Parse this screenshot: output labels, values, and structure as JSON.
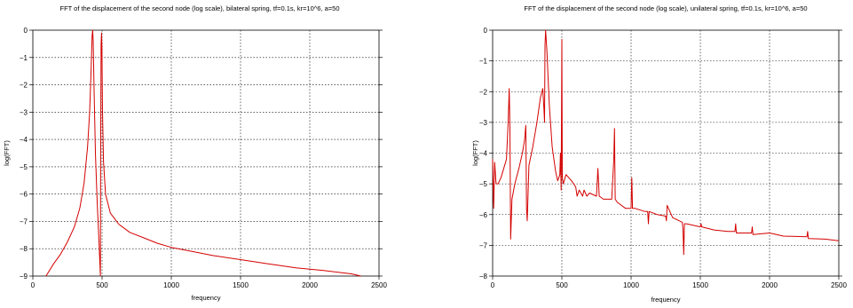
{
  "chart_data": [
    {
      "type": "line",
      "title": "FFT of the  displacement of the second  node (log scale), bilateral spring, tf=0.1s, kr=10^6, a=50",
      "xlabel": "frequency",
      "ylabel": "log(FFT)",
      "xlim": [
        0,
        2500
      ],
      "ylim": [
        -9,
        0
      ],
      "xticks": [
        0,
        500,
        1000,
        1500,
        2000,
        2500
      ],
      "yticks": [
        -9,
        -8,
        -7,
        -6,
        -5,
        -4,
        -3,
        -2,
        -1,
        0
      ],
      "grid": true,
      "line_color": "#d40000",
      "series": [
        {
          "x": [
            95,
            150,
            200,
            250,
            300,
            340,
            370,
            395,
            410,
            420,
            428,
            432,
            436,
            442,
            452,
            465,
            478,
            488,
            490,
            493,
            496,
            499,
            503,
            510,
            525,
            560,
            620,
            700,
            800,
            900,
            1000,
            1150,
            1300,
            1500,
            1700,
            1900,
            2100,
            2300,
            2370
          ],
          "y": [
            -9.0,
            -8.55,
            -8.2,
            -7.75,
            -7.2,
            -6.5,
            -5.6,
            -4.3,
            -3.0,
            -1.6,
            -0.2,
            0.0,
            -0.4,
            -2.2,
            -4.5,
            -6.3,
            -7.8,
            -9.0,
            -4.5,
            -0.5,
            -0.1,
            -0.6,
            -3.0,
            -4.8,
            -6.0,
            -6.7,
            -7.1,
            -7.4,
            -7.6,
            -7.8,
            -7.95,
            -8.1,
            -8.25,
            -8.4,
            -8.55,
            -8.7,
            -8.8,
            -8.92,
            -9.0
          ]
        }
      ]
    },
    {
      "type": "line",
      "title": "FFT of the  displacement of the second  node (log scale), unilateral spring, tf=0.1s, kr=10^6, a=50",
      "xlabel": "frequency",
      "ylabel": "log(FFT)",
      "xlim": [
        0,
        2500
      ],
      "ylim": [
        -8,
        0
      ],
      "xticks": [
        0,
        500,
        1000,
        1500,
        2000,
        2500
      ],
      "yticks": [
        -8,
        -7,
        -6,
        -5,
        -4,
        -3,
        -2,
        -1,
        0
      ],
      "grid": true,
      "line_color": "#d40000",
      "series": [
        {
          "x": [
            0,
            8,
            15,
            25,
            40,
            60,
            80,
            100,
            112,
            120,
            125,
            130,
            140,
            160,
            190,
            215,
            230,
            240,
            245,
            250,
            262,
            290,
            320,
            345,
            362,
            370,
            375,
            378,
            383,
            392,
            400,
            410,
            430,
            455,
            470,
            485,
            490,
            495,
            500,
            503,
            510,
            530,
            570,
            600,
            610,
            625,
            650,
            660,
            680,
            700,
            750,
            760,
            770,
            800,
            860,
            875,
            880,
            885,
            900,
            960,
            1000,
            1005,
            1010,
            1030,
            1100,
            1120,
            1125,
            1130,
            1190,
            1250,
            1255,
            1260,
            1300,
            1370,
            1375,
            1380,
            1385,
            1400,
            1500,
            1505,
            1510,
            1600,
            1700,
            1750,
            1755,
            1760,
            1870,
            1875,
            1880,
            2000,
            2100,
            2270,
            2275,
            2280,
            2400,
            2500
          ],
          "y": [
            -4.2,
            -5.8,
            -4.3,
            -5.0,
            -5.0,
            -4.8,
            -4.5,
            -4.2,
            -3.0,
            -1.9,
            -3.2,
            -6.8,
            -5.5,
            -5.0,
            -4.5,
            -4.0,
            -3.6,
            -3.1,
            -5.8,
            -6.2,
            -4.4,
            -3.8,
            -3.0,
            -2.2,
            -1.9,
            -2.5,
            -3.0,
            -0.5,
            0.0,
            -0.7,
            -1.5,
            -2.5,
            -3.8,
            -4.6,
            -4.9,
            -4.7,
            -4.0,
            -5.2,
            -0.3,
            -4.8,
            -5.0,
            -4.7,
            -4.9,
            -5.1,
            -5.4,
            -5.2,
            -5.4,
            -5.2,
            -5.4,
            -5.3,
            -5.4,
            -4.5,
            -5.4,
            -5.5,
            -5.5,
            -4.2,
            -3.2,
            -5.5,
            -5.6,
            -5.8,
            -5.8,
            -4.8,
            -5.8,
            -5.8,
            -5.9,
            -5.9,
            -6.3,
            -5.9,
            -6.0,
            -6.05,
            -6.2,
            -5.7,
            -6.1,
            -6.25,
            -6.5,
            -7.3,
            -6.3,
            -6.3,
            -6.4,
            -6.3,
            -6.4,
            -6.5,
            -6.55,
            -6.55,
            -6.3,
            -6.6,
            -6.6,
            -6.4,
            -6.65,
            -6.6,
            -6.7,
            -6.72,
            -6.55,
            -6.78,
            -6.8,
            -6.85
          ]
        }
      ]
    }
  ]
}
